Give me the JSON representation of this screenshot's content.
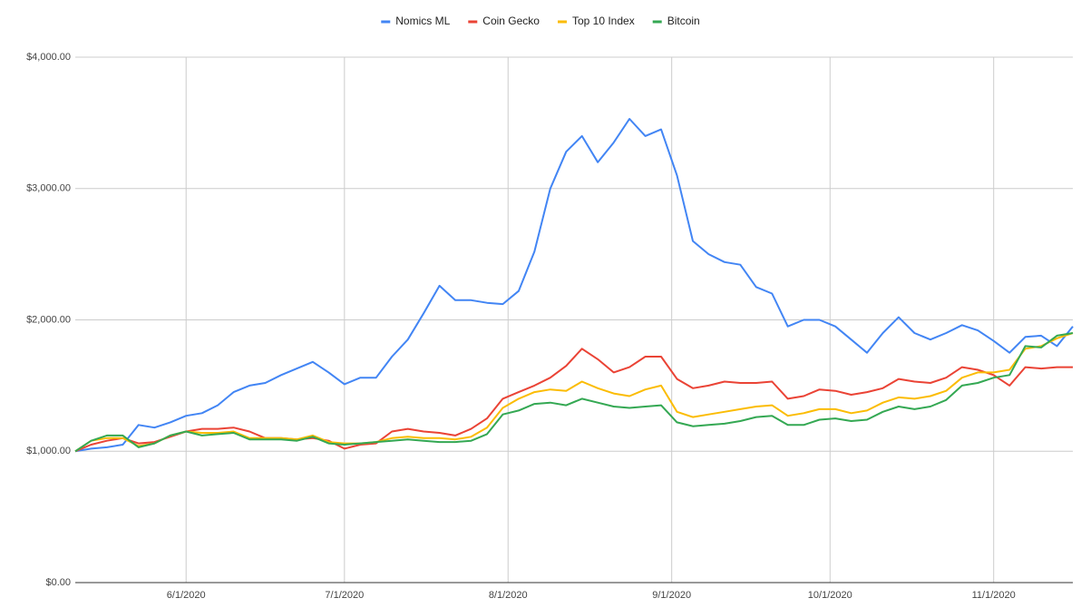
{
  "chart_data": {
    "type": "line",
    "x": [
      "2020-05-11",
      "2020-05-14",
      "2020-05-17",
      "2020-05-20",
      "2020-05-23",
      "2020-05-26",
      "2020-05-29",
      "2020-06-01",
      "2020-06-04",
      "2020-06-07",
      "2020-06-10",
      "2020-06-13",
      "2020-06-16",
      "2020-06-19",
      "2020-06-22",
      "2020-06-25",
      "2020-06-28",
      "2020-07-01",
      "2020-07-04",
      "2020-07-07",
      "2020-07-10",
      "2020-07-13",
      "2020-07-16",
      "2020-07-19",
      "2020-07-22",
      "2020-07-25",
      "2020-07-28",
      "2020-07-31",
      "2020-08-03",
      "2020-08-06",
      "2020-08-09",
      "2020-08-12",
      "2020-08-15",
      "2020-08-18",
      "2020-08-21",
      "2020-08-24",
      "2020-08-27",
      "2020-08-30",
      "2020-09-02",
      "2020-09-05",
      "2020-09-08",
      "2020-09-11",
      "2020-09-14",
      "2020-09-17",
      "2020-09-20",
      "2020-09-23",
      "2020-09-26",
      "2020-09-29",
      "2020-10-02",
      "2020-10-05",
      "2020-10-08",
      "2020-10-11",
      "2020-10-14",
      "2020-10-17",
      "2020-10-20",
      "2020-10-23",
      "2020-10-26",
      "2020-10-29",
      "2020-11-01",
      "2020-11-04",
      "2020-11-07",
      "2020-11-10",
      "2020-11-13",
      "2020-11-16"
    ],
    "series": [
      {
        "name": "Nomics ML",
        "color": "#4285f4",
        "values": [
          1000,
          1020,
          1030,
          1050,
          1200,
          1180,
          1220,
          1270,
          1290,
          1350,
          1450,
          1500,
          1520,
          1580,
          1630,
          1680,
          1600,
          1510,
          1560,
          1560,
          1720,
          1850,
          2050,
          2260,
          2150,
          2150,
          2130,
          2120,
          2220,
          2520,
          3000,
          3280,
          3400,
          3200,
          3350,
          3530,
          3400,
          3450,
          3100,
          2600,
          2500,
          2440,
          2420,
          2250,
          2200,
          1950,
          2000,
          2000,
          1950,
          1850,
          1750,
          1900,
          2020,
          1900,
          1850,
          1900,
          1960,
          1920,
          1840,
          1750,
          1870,
          1880,
          1800,
          1950
        ]
      },
      {
        "name": "Coin Gecko",
        "color": "#ea4335",
        "values": [
          1000,
          1050,
          1080,
          1100,
          1060,
          1070,
          1110,
          1150,
          1170,
          1170,
          1180,
          1150,
          1100,
          1100,
          1090,
          1100,
          1080,
          1020,
          1050,
          1060,
          1150,
          1170,
          1150,
          1140,
          1120,
          1170,
          1250,
          1400,
          1450,
          1500,
          1560,
          1650,
          1780,
          1700,
          1600,
          1640,
          1720,
          1720,
          1550,
          1480,
          1500,
          1530,
          1520,
          1520,
          1530,
          1400,
          1420,
          1470,
          1460,
          1430,
          1450,
          1480,
          1550,
          1530,
          1520,
          1560,
          1640,
          1620,
          1580,
          1500,
          1640,
          1630,
          1640,
          1640
        ]
      },
      {
        "name": "Top 10 Index",
        "color": "#fbbc04",
        "values": [
          1000,
          1080,
          1100,
          1100,
          1040,
          1060,
          1120,
          1150,
          1140,
          1140,
          1150,
          1100,
          1100,
          1100,
          1090,
          1120,
          1070,
          1060,
          1060,
          1070,
          1100,
          1110,
          1100,
          1100,
          1090,
          1110,
          1180,
          1330,
          1400,
          1450,
          1470,
          1460,
          1530,
          1480,
          1440,
          1420,
          1470,
          1500,
          1300,
          1260,
          1280,
          1300,
          1320,
          1340,
          1350,
          1270,
          1290,
          1320,
          1320,
          1290,
          1310,
          1370,
          1410,
          1400,
          1420,
          1460,
          1560,
          1600,
          1600,
          1620,
          1780,
          1800,
          1860,
          1900
        ]
      },
      {
        "name": "Bitcoin",
        "color": "#34a853",
        "values": [
          1000,
          1080,
          1120,
          1120,
          1030,
          1060,
          1120,
          1150,
          1120,
          1130,
          1140,
          1090,
          1090,
          1090,
          1080,
          1110,
          1060,
          1050,
          1060,
          1070,
          1080,
          1090,
          1080,
          1070,
          1070,
          1080,
          1130,
          1280,
          1310,
          1360,
          1370,
          1350,
          1400,
          1370,
          1340,
          1330,
          1340,
          1350,
          1220,
          1190,
          1200,
          1210,
          1230,
          1260,
          1270,
          1200,
          1200,
          1240,
          1250,
          1230,
          1240,
          1300,
          1340,
          1320,
          1340,
          1390,
          1500,
          1520,
          1560,
          1580,
          1800,
          1790,
          1880,
          1900
        ]
      }
    ],
    "xlim": [
      "2020-05-11",
      "2020-11-16"
    ],
    "xticks": [
      {
        "value": "2020-06-01",
        "label": "6/1/2020"
      },
      {
        "value": "2020-07-01",
        "label": "7/1/2020"
      },
      {
        "value": "2020-08-01",
        "label": "8/1/2020"
      },
      {
        "value": "2020-09-01",
        "label": "9/1/2020"
      },
      {
        "value": "2020-10-01",
        "label": "10/1/2020"
      },
      {
        "value": "2020-11-01",
        "label": "11/1/2020"
      }
    ],
    "ylim": [
      0,
      4000
    ],
    "yticks": [
      {
        "value": 0,
        "label": "$0.00"
      },
      {
        "value": 1000,
        "label": "$1,000.00"
      },
      {
        "value": 2000,
        "label": "$2,000.00"
      },
      {
        "value": 3000,
        "label": "$3,000.00"
      },
      {
        "value": 4000,
        "label": "$4,000.00"
      }
    ],
    "grid": true,
    "legend": "top"
  }
}
